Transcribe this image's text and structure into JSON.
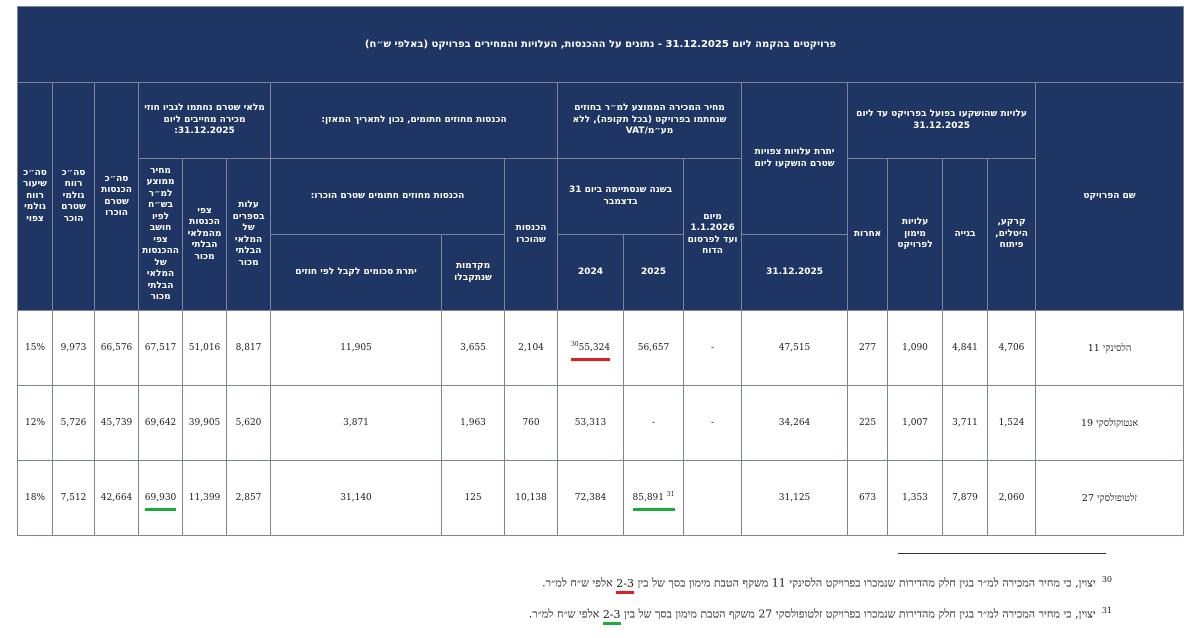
{
  "table": {
    "title": "פרויקטים בהקמה ליום 31.12.2025 - נתונים על ההכנסות, העלויות והמחירים בפרויקט (באלפי ש״ח)",
    "headers": {
      "project_name": "שם הפרויקט",
      "costs_invested_group": "עלויות שהושקעו בפועל בפרויקט עד ליום 31.12.2025",
      "land": "קרקע, היטלים, פיתוח",
      "construction": "בנייה",
      "financing": "עלויות מימון לפרויקט",
      "other": "אחרות",
      "remaining_costs_group": "יתרת עלויות צפויות שטרם הושקעו ליום",
      "remaining_costs_date": "31.12.2025",
      "avg_price_group": "מחיר המכירה הממוצע למ״ר בחוזים שנחתמו בפרויקט (בכל תקופה), ללא מע״מ/VAT",
      "from_2026": "מיום 1.1.2026 ועד לפרסום הדוח",
      "year_ended": "בשנה שנסתיימה ביום 31 בדצמבר",
      "y2025": "2025",
      "y2024": "2024",
      "revenue_group": "הכנסות מחוזים חתומים, נכון לתאריך המאזן:",
      "recognized_revenue": "הכנסות שהוכרו",
      "unrecognized_group": "הכנסות מחוזים חתומים שטרם הוכרו:",
      "advances": "מקדמות שנתקבלו",
      "balance": "יתרת סכומים לקבל לפי חוזים",
      "unsold_group": "מלאי שטרם נחתמו לגביו חוזי מכירה מחייבים ליום 31.12.2025:",
      "unsold_cost": "עלות בספרים של המלאי הבלתי מכור",
      "unsold_expected": "צפי הכנסות מהמלאי הבלתי מכור",
      "unsold_avg_price": "מחיר ממוצע למ״ר בש״ח לפיו חושב צפי ההכנסות של המלאי הבלתי מכור",
      "total_unrecognized": "סה״כ הכנסות שטרם הוכרו",
      "total_gross_profit": "סה״כ רווח גולמי שטרם הוכר",
      "gross_margin": "סה״כ שיעור רווח גולמי צפוי"
    },
    "rows": [
      {
        "name": "הלסינקי 11",
        "land": "4,706",
        "construction": "4,841",
        "financing": "1,090",
        "other": "277",
        "remaining": "47,515",
        "from_2026": "-",
        "y2025": "56,657",
        "y2025_note": "",
        "y2024": "55,324",
        "y2024_note": "30",
        "recognized": "2,104",
        "advances": "3,655",
        "balance": "11,905",
        "unsold_cost": "8,817",
        "unsold_expected": "51,016",
        "unsold_avg_price": "67,517",
        "total_unrecognized": "66,576",
        "total_gross_profit": "9,973",
        "gross_margin": "15%"
      },
      {
        "name": "אנטוקולסקי 19",
        "land": "1,524",
        "construction": "3,711",
        "financing": "1,007",
        "other": "225",
        "remaining": "34,264",
        "from_2026": "-",
        "y2025": "-",
        "y2025_note": "",
        "y2024": "53,313",
        "y2024_note": "",
        "recognized": "760",
        "advances": "1,963",
        "balance": "3,871",
        "unsold_cost": "5,620",
        "unsold_expected": "39,905",
        "unsold_avg_price": "69,642",
        "total_unrecognized": "45,739",
        "total_gross_profit": "5,726",
        "gross_margin": "12%"
      },
      {
        "name": "זלטופולסקי 27",
        "land": "2,060",
        "construction": "7,879",
        "financing": "1,353",
        "other": "673",
        "remaining": "31,125",
        "from_2026": "",
        "y2025": "85,891",
        "y2025_note": "31",
        "y2024": "72,384",
        "y2024_note": "",
        "recognized": "10,138",
        "advances": "125",
        "balance": "31,140",
        "unsold_cost": "2,857",
        "unsold_expected": "11,399",
        "unsold_avg_price": "69,930",
        "total_unrecognized": "42,664",
        "total_gross_profit": "7,512",
        "gross_margin": "18%"
      }
    ]
  },
  "footnotes": [
    {
      "number": "30",
      "before": "יצוין, כי מחיר המכירה למ״ר בגין חלק מהדירות שנמכרו בפרויקט הלסינקי 11 משקף הטבת מימון בסך של בין ",
      "highlight": "2-3",
      "after": " אלפי ש״ח למ״ר."
    },
    {
      "number": "31",
      "before": "יצוין, כי מחיר המכירה למ״ר בגין חלק מהדירות שנמכרו בפרויקט זלטופולסקי 27 משקף הטבת מימון בסך של בין ",
      "highlight": "2-3",
      "after": " אלפי ש״ח למ״ר."
    }
  ],
  "colors": {
    "header_bg": "#1f3563",
    "highlight_red": "#e02020",
    "highlight_green": "#1dab3a"
  }
}
